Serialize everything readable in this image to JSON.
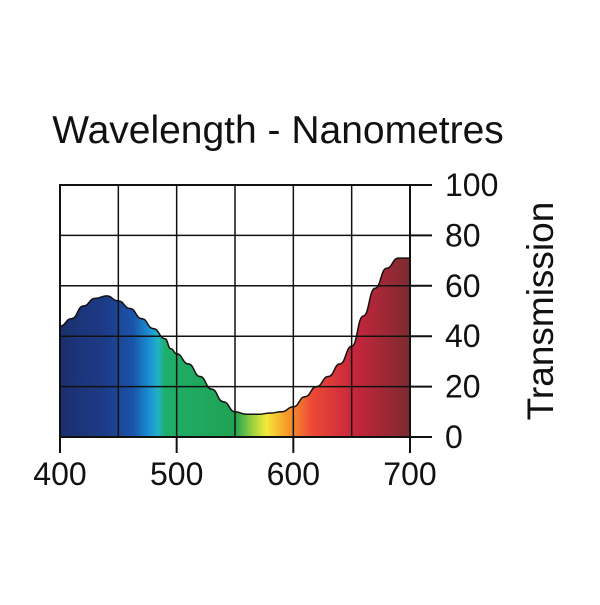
{
  "chart_data": {
    "type": "area",
    "title": "Wavelength - Nanometres",
    "xlabel": "",
    "ylabel": "Transmission",
    "xlim": [
      400,
      700
    ],
    "ylim": [
      0,
      100
    ],
    "grid": true,
    "x_ticks": [
      400,
      500,
      600,
      700
    ],
    "x_tick_labels": [
      "400",
      "500",
      "600",
      "700"
    ],
    "x_grid": [
      400,
      450,
      500,
      550,
      600,
      650,
      700
    ],
    "y_ticks": [
      0,
      20,
      40,
      60,
      80,
      100
    ],
    "y_tick_labels": [
      "0",
      "20",
      "40",
      "60",
      "80",
      "100"
    ],
    "y_axis_side": "right",
    "series": [
      {
        "name": "Transmission",
        "x": [
          400,
          410,
          420,
          430,
          440,
          450,
          460,
          470,
          480,
          490,
          495,
          500,
          510,
          520,
          530,
          540,
          550,
          560,
          570,
          580,
          590,
          600,
          610,
          620,
          630,
          640,
          650,
          660,
          670,
          680,
          690,
          700
        ],
        "y": [
          44,
          47,
          52,
          55,
          56,
          54,
          51,
          47,
          43,
          39,
          35,
          33,
          29,
          24,
          19,
          14,
          10,
          9,
          9,
          9.5,
          10,
          12,
          16,
          20,
          24,
          29,
          36,
          48,
          59,
          67,
          71,
          71
        ]
      }
    ],
    "fill": "visible-spectrum"
  }
}
